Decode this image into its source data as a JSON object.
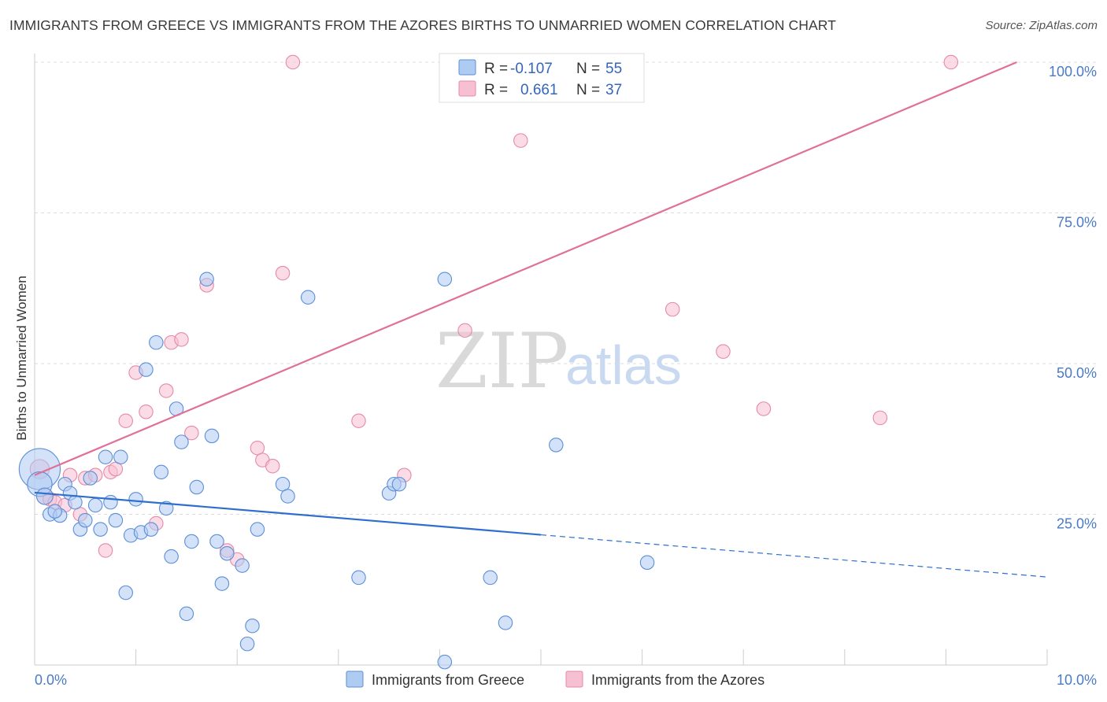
{
  "title": "IMMIGRANTS FROM GREECE VS IMMIGRANTS FROM THE AZORES BIRTHS TO UNMARRIED WOMEN CORRELATION CHART",
  "source": "Source: ZipAtlas.com",
  "watermark": {
    "zip": "ZIP",
    "atlas": "atlas"
  },
  "colors": {
    "greece_fill": "#aecbf2",
    "greece_stroke": "#5b8fd6",
    "greece_line": "#2f6fcc",
    "azores_fill": "#f7c0d2",
    "azores_stroke": "#e48aa8",
    "azores_line": "#e0709a",
    "tick": "#4a7bc4",
    "grid": "#dddddd"
  },
  "stats": [
    {
      "r_label": "R =",
      "r": "-0.107",
      "n_label": "N =",
      "n": "55"
    },
    {
      "r_label": "R =",
      "r": "0.661",
      "n_label": "N =",
      "n": "37"
    }
  ],
  "chart_data": {
    "type": "scatter",
    "ylabel": "Births to Unmarried Women",
    "xlabel": "",
    "xlim": [
      0,
      10
    ],
    "ylim": [
      0,
      100
    ],
    "x_tick_labels": [
      {
        "value": 0,
        "label": "0.0%"
      },
      {
        "value": 10,
        "label": "10.0%"
      }
    ],
    "x_minor_ticks": [
      0,
      1,
      2,
      3,
      4,
      5,
      6,
      7,
      8,
      9,
      10
    ],
    "y_ticks": [
      {
        "value": 25,
        "label": "25.0%"
      },
      {
        "value": 50,
        "label": "50.0%"
      },
      {
        "value": 75,
        "label": "75.0%"
      },
      {
        "value": 100,
        "label": "100.0%"
      }
    ],
    "grid": true,
    "legend": {
      "position": "bottom"
    },
    "series": [
      {
        "name": "Immigrants from Greece",
        "trend": {
          "x0": 0.0,
          "y0": 28.6,
          "x1": 5.0,
          "y1": 21.6,
          "dash_to_x": 10.0,
          "dash_to_y": 14.6
        },
        "points": [
          [
            0.05,
            32.5,
            30
          ],
          [
            0.05,
            30.0,
            18
          ],
          [
            0.1,
            28.0,
            12
          ],
          [
            0.15,
            25.0,
            10
          ],
          [
            0.25,
            24.8,
            10
          ],
          [
            0.3,
            30.0,
            10
          ],
          [
            0.35,
            28.5,
            10
          ],
          [
            0.4,
            27.0,
            10
          ],
          [
            0.45,
            22.5,
            10
          ],
          [
            0.5,
            24.0,
            10
          ],
          [
            0.55,
            31.0,
            10
          ],
          [
            0.6,
            26.5,
            10
          ],
          [
            0.65,
            22.5,
            10
          ],
          [
            0.7,
            34.5,
            10
          ],
          [
            0.75,
            27.0,
            10
          ],
          [
            0.8,
            24.0,
            10
          ],
          [
            0.85,
            34.5,
            10
          ],
          [
            0.9,
            12.0,
            10
          ],
          [
            0.95,
            21.5,
            10
          ],
          [
            1.0,
            27.5,
            10
          ],
          [
            1.05,
            22.0,
            10
          ],
          [
            1.1,
            49.0,
            10
          ],
          [
            1.15,
            22.5,
            10
          ],
          [
            1.2,
            53.5,
            10
          ],
          [
            1.25,
            32.0,
            10
          ],
          [
            1.3,
            26.0,
            10
          ],
          [
            1.35,
            18.0,
            10
          ],
          [
            1.4,
            42.5,
            10
          ],
          [
            1.45,
            37.0,
            10
          ],
          [
            1.5,
            8.5,
            10
          ],
          [
            1.55,
            20.5,
            10
          ],
          [
            1.6,
            29.5,
            10
          ],
          [
            1.7,
            64.0,
            10
          ],
          [
            1.75,
            38.0,
            10
          ],
          [
            1.8,
            20.5,
            10
          ],
          [
            1.85,
            13.5,
            10
          ],
          [
            1.9,
            18.5,
            10
          ],
          [
            2.05,
            16.5,
            10
          ],
          [
            2.1,
            3.5,
            10
          ],
          [
            2.15,
            6.5,
            10
          ],
          [
            2.2,
            22.5,
            10
          ],
          [
            2.45,
            30.0,
            10
          ],
          [
            2.5,
            28.0,
            10
          ],
          [
            2.7,
            61.0,
            10
          ],
          [
            3.2,
            14.5,
            10
          ],
          [
            3.5,
            28.5,
            10
          ],
          [
            3.55,
            30.0,
            10
          ],
          [
            3.6,
            30.0,
            10
          ],
          [
            4.05,
            64.0,
            10
          ],
          [
            4.05,
            0.5,
            10
          ],
          [
            4.5,
            14.5,
            10
          ],
          [
            4.65,
            7.0,
            10
          ],
          [
            5.15,
            36.5,
            10
          ],
          [
            6.05,
            17.0,
            10
          ],
          [
            0.2,
            25.5,
            10
          ]
        ]
      },
      {
        "name": "Immigrants from the Azores",
        "trend": {
          "x0": 0.0,
          "y0": 31.5,
          "x1": 9.7,
          "y1": 100.0
        },
        "points": [
          [
            0.05,
            32.5,
            14
          ],
          [
            0.1,
            28.0,
            12
          ],
          [
            0.15,
            27.5,
            10
          ],
          [
            0.2,
            27.0,
            10
          ],
          [
            0.3,
            26.5,
            10
          ],
          [
            0.35,
            31.5,
            10
          ],
          [
            0.45,
            25.0,
            10
          ],
          [
            0.5,
            31.0,
            10
          ],
          [
            0.6,
            31.5,
            10
          ],
          [
            0.7,
            19.0,
            10
          ],
          [
            0.75,
            32.0,
            10
          ],
          [
            0.8,
            32.5,
            10
          ],
          [
            0.9,
            40.5,
            10
          ],
          [
            1.0,
            48.5,
            10
          ],
          [
            1.1,
            42.0,
            10
          ],
          [
            1.2,
            23.5,
            10
          ],
          [
            1.3,
            45.5,
            10
          ],
          [
            1.35,
            53.5,
            10
          ],
          [
            1.45,
            54.0,
            10
          ],
          [
            1.55,
            38.5,
            10
          ],
          [
            1.7,
            63.0,
            10
          ],
          [
            1.9,
            19.0,
            10
          ],
          [
            2.0,
            17.5,
            10
          ],
          [
            2.2,
            36.0,
            10
          ],
          [
            2.25,
            34.0,
            10
          ],
          [
            2.35,
            33.0,
            10
          ],
          [
            2.45,
            65.0,
            10
          ],
          [
            2.55,
            100.0,
            10
          ],
          [
            3.2,
            40.5,
            10
          ],
          [
            3.65,
            31.5,
            10
          ],
          [
            4.25,
            55.5,
            10
          ],
          [
            4.8,
            87.0,
            10
          ],
          [
            6.3,
            59.0,
            10
          ],
          [
            6.8,
            52.0,
            10
          ],
          [
            7.2,
            42.5,
            10
          ],
          [
            8.35,
            41.0,
            10
          ],
          [
            9.05,
            100.0,
            10
          ]
        ]
      }
    ]
  }
}
